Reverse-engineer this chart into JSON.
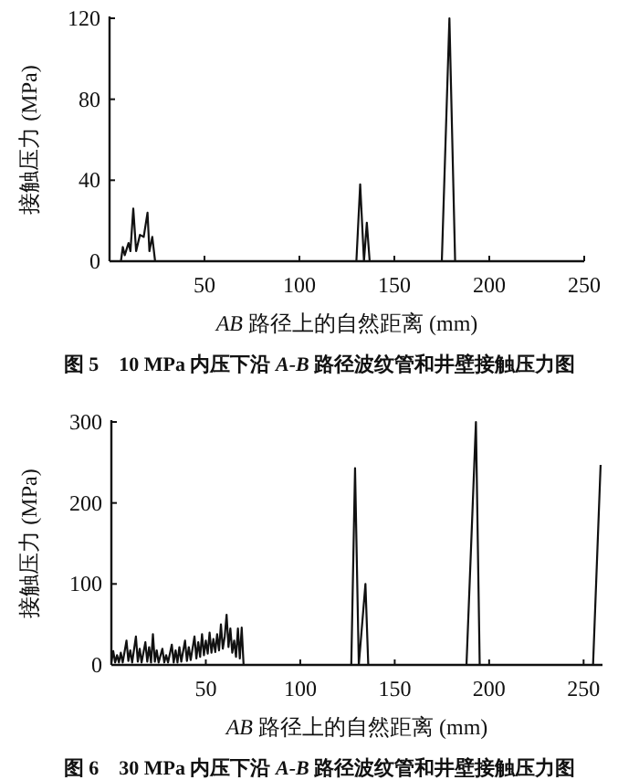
{
  "chart_data": [
    {
      "type": "line",
      "title": "图 5　10 MPa 内压下沿 *A-B* 路径波纹管和井壁接触压力图",
      "xlabel": "*AB* 路径上的自然距离 (mm)",
      "ylabel": "接触压力 (MPa)",
      "xlim": [
        0,
        250
      ],
      "ylim": [
        0,
        120
      ],
      "xticks": [
        50,
        100,
        150,
        200,
        250
      ],
      "yticks": [
        0,
        40,
        80,
        120
      ],
      "color": "#111111",
      "marker": "none",
      "line_style": "solid",
      "x": [
        6,
        7,
        8,
        10,
        11,
        12.5,
        14,
        16,
        18,
        20,
        21,
        22.5,
        24,
        130,
        132,
        134,
        135.5,
        137,
        175,
        179,
        182
      ],
      "values": [
        0,
        7,
        3,
        9,
        5,
        26,
        5,
        13,
        12,
        24,
        5,
        12,
        0,
        0,
        38,
        0,
        19,
        0,
        0,
        120,
        0
      ]
    },
    {
      "type": "line",
      "title": "图 6　30 MPa 内压下沿 *A-B* 路径波纹管和井壁接触压力图",
      "xlabel": "*AB* 路径上的自然距离 (mm)",
      "ylabel": "接触压力 (MPa)",
      "xlim": [
        0,
        260
      ],
      "ylim": [
        0,
        300
      ],
      "xticks": [
        50,
        100,
        150,
        200,
        250
      ],
      "yticks": [
        0,
        100,
        200,
        300
      ],
      "color": "#111111",
      "marker": "none",
      "line_style": "solid",
      "x": [
        0,
        1,
        2,
        3,
        4,
        5,
        6,
        8,
        9,
        10,
        11,
        13,
        14,
        15,
        16,
        18,
        19,
        20,
        21,
        22,
        23,
        24,
        25,
        27,
        28,
        29,
        30,
        32,
        33,
        34,
        35,
        36,
        37,
        39,
        40,
        41,
        42,
        44,
        45,
        46,
        47,
        48,
        49,
        50,
        51,
        52,
        53,
        54,
        55,
        56,
        57,
        58,
        59,
        60,
        61,
        62,
        63,
        64,
        65,
        66,
        67,
        68,
        69,
        70,
        127,
        129,
        131,
        134.5,
        136,
        188,
        193,
        195,
        255,
        259
      ],
      "values": [
        3,
        17,
        3,
        12,
        3,
        15,
        3,
        30,
        5,
        18,
        3,
        35,
        4,
        20,
        3,
        28,
        4,
        22,
        3,
        38,
        4,
        18,
        3,
        20,
        3,
        12,
        3,
        25,
        3,
        18,
        3,
        22,
        4,
        30,
        5,
        22,
        6,
        35,
        8,
        28,
        10,
        38,
        12,
        30,
        14,
        40,
        15,
        32,
        16,
        38,
        18,
        50,
        20,
        35,
        62,
        22,
        45,
        15,
        30,
        10,
        45,
        8,
        46,
        0,
        0,
        243,
        0,
        100,
        0,
        0,
        300,
        0,
        0,
        247
      ]
    }
  ]
}
